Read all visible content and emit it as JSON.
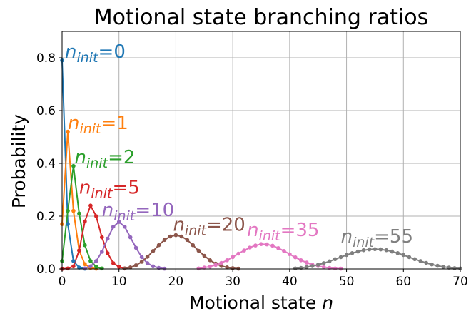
{
  "chart_data": {
    "type": "line",
    "title": "Motional state branching ratios",
    "xlabel": "Motional state ",
    "xlabel_var": "n",
    "ylabel": "Probability",
    "xlim": [
      0,
      70
    ],
    "ylim": [
      0,
      0.9
    ],
    "xticks": [
      0,
      10,
      20,
      30,
      40,
      50,
      60,
      70
    ],
    "xtick_labels": [
      "0",
      "10",
      "20",
      "30",
      "40",
      "50",
      "60",
      "70"
    ],
    "yticks": [
      0,
      0.2,
      0.4,
      0.6,
      0.8
    ],
    "ytick_labels": [
      "0.0",
      "0.2",
      "0.4",
      "0.6",
      "0.8"
    ],
    "grid": true,
    "series": [
      {
        "color": "#1f77b4",
        "label": {
          "var": "n",
          "sub": "init",
          "value": "=0",
          "at": [
            0.5,
            0.8
          ]
        },
        "points": [
          [
            0,
            0.79
          ],
          [
            1,
            0.17
          ],
          [
            2,
            0.03
          ],
          [
            3,
            0.005
          ],
          [
            4,
            0.001
          ]
        ]
      },
      {
        "color": "#ff7f0e",
        "label": {
          "var": "n",
          "sub": "init",
          "value": "=1",
          "at": [
            1.0,
            0.53
          ]
        },
        "points": [
          [
            0,
            0.17
          ],
          [
            1,
            0.52
          ],
          [
            2,
            0.22
          ],
          [
            3,
            0.07
          ],
          [
            4,
            0.018
          ],
          [
            5,
            0.004
          ],
          [
            6,
            0.001
          ]
        ]
      },
      {
        "color": "#2ca02c",
        "label": {
          "var": "n",
          "sub": "init",
          "value": "=2",
          "at": [
            2.2,
            0.4
          ]
        },
        "points": [
          [
            0,
            0.03
          ],
          [
            1,
            0.22
          ],
          [
            2,
            0.39
          ],
          [
            3,
            0.21
          ],
          [
            4,
            0.09
          ],
          [
            5,
            0.03
          ],
          [
            6,
            0.008
          ],
          [
            7,
            0.002
          ]
        ]
      },
      {
        "color": "#d62728",
        "label": {
          "var": "n",
          "sub": "init",
          "value": "=5",
          "at": [
            3.0,
            0.285
          ]
        },
        "points": [
          [
            0,
            0.0
          ],
          [
            1,
            0.002
          ],
          [
            2,
            0.01
          ],
          [
            3,
            0.07
          ],
          [
            4,
            0.18
          ],
          [
            5,
            0.24
          ],
          [
            6,
            0.2
          ],
          [
            7,
            0.12
          ],
          [
            8,
            0.06
          ],
          [
            9,
            0.022
          ],
          [
            10,
            0.008
          ],
          [
            11,
            0.002
          ]
        ]
      },
      {
        "color": "#9467bd",
        "label": {
          "var": "n",
          "sub": "init",
          "value": "=10",
          "at": [
            7.0,
            0.2
          ]
        },
        "points": [
          [
            4,
            0.002
          ],
          [
            5,
            0.01
          ],
          [
            6,
            0.03
          ],
          [
            7,
            0.065
          ],
          [
            8,
            0.115
          ],
          [
            9,
            0.16
          ],
          [
            10,
            0.178
          ],
          [
            11,
            0.16
          ],
          [
            12,
            0.12
          ],
          [
            13,
            0.08
          ],
          [
            14,
            0.045
          ],
          [
            15,
            0.022
          ],
          [
            16,
            0.01
          ],
          [
            17,
            0.004
          ],
          [
            18,
            0.001
          ]
        ]
      },
      {
        "color": "#8c564b",
        "label": {
          "var": "n",
          "sub": "init",
          "value": "=20",
          "at": [
            19.5,
            0.145
          ]
        },
        "points": [
          [
            11,
            0.002
          ],
          [
            12,
            0.006
          ],
          [
            13,
            0.014
          ],
          [
            14,
            0.027
          ],
          [
            15,
            0.046
          ],
          [
            16,
            0.068
          ],
          [
            17,
            0.09
          ],
          [
            18,
            0.11
          ],
          [
            19,
            0.123
          ],
          [
            20,
            0.128
          ],
          [
            21,
            0.123
          ],
          [
            22,
            0.11
          ],
          [
            23,
            0.09
          ],
          [
            24,
            0.069
          ],
          [
            25,
            0.05
          ],
          [
            26,
            0.033
          ],
          [
            27,
            0.02
          ],
          [
            28,
            0.011
          ],
          [
            29,
            0.006
          ],
          [
            30,
            0.003
          ],
          [
            31,
            0.001
          ]
        ]
      },
      {
        "color": "#e377c2",
        "label": {
          "var": "n",
          "sub": "init",
          "value": "=35",
          "at": [
            32.5,
            0.125
          ]
        },
        "points": [
          [
            24,
            0.002
          ],
          [
            25,
            0.005
          ],
          [
            26,
            0.009
          ],
          [
            27,
            0.015
          ],
          [
            28,
            0.023
          ],
          [
            29,
            0.033
          ],
          [
            30,
            0.045
          ],
          [
            31,
            0.058
          ],
          [
            32,
            0.07
          ],
          [
            33,
            0.081
          ],
          [
            34,
            0.089
          ],
          [
            35,
            0.094
          ],
          [
            36,
            0.093
          ],
          [
            37,
            0.088
          ],
          [
            38,
            0.079
          ],
          [
            39,
            0.068
          ],
          [
            40,
            0.056
          ],
          [
            41,
            0.044
          ],
          [
            42,
            0.033
          ],
          [
            43,
            0.024
          ],
          [
            44,
            0.016
          ],
          [
            45,
            0.011
          ],
          [
            46,
            0.007
          ],
          [
            47,
            0.004
          ],
          [
            48,
            0.002
          ],
          [
            49,
            0.001
          ]
        ]
      },
      {
        "color": "#7f7f7f",
        "label": {
          "var": "n",
          "sub": "init",
          "value": "=55",
          "at": [
            49,
            0.1
          ]
        },
        "points": [
          [
            41,
            0.002
          ],
          [
            42,
            0.004
          ],
          [
            43,
            0.007
          ],
          [
            44,
            0.011
          ],
          [
            45,
            0.016
          ],
          [
            46,
            0.022
          ],
          [
            47,
            0.029
          ],
          [
            48,
            0.037
          ],
          [
            49,
            0.045
          ],
          [
            50,
            0.053
          ],
          [
            51,
            0.06
          ],
          [
            52,
            0.066
          ],
          [
            53,
            0.071
          ],
          [
            54,
            0.074
          ],
          [
            55,
            0.075
          ],
          [
            56,
            0.074
          ],
          [
            57,
            0.071
          ],
          [
            58,
            0.066
          ],
          [
            59,
            0.06
          ],
          [
            60,
            0.053
          ],
          [
            61,
            0.045
          ],
          [
            62,
            0.037
          ],
          [
            63,
            0.03
          ],
          [
            64,
            0.023
          ],
          [
            65,
            0.017
          ],
          [
            66,
            0.012
          ],
          [
            67,
            0.008
          ],
          [
            68,
            0.005
          ],
          [
            69,
            0.003
          ],
          [
            70,
            0.002
          ]
        ]
      }
    ]
  }
}
